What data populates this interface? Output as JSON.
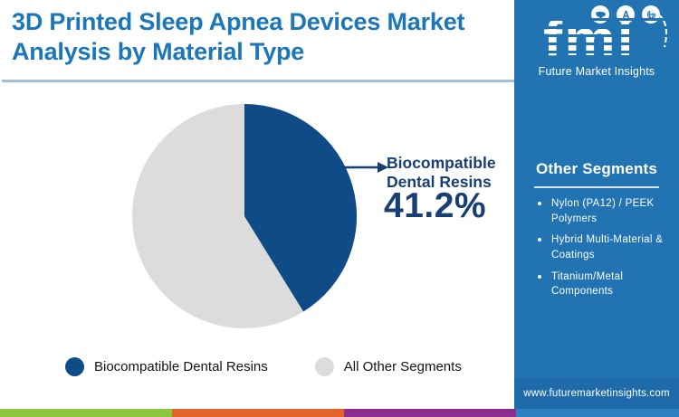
{
  "colors": {
    "title_blue": "#1B76BA",
    "sidebar_blue": "#2273B2",
    "navy": "#173F74",
    "pie_navy": "#0F4B87",
    "pie_gray": "#DCDCDC",
    "divider": "#9FC2DA",
    "strip_green": "#8CC63F",
    "strip_orange": "#E4632A",
    "strip_purple": "#8E2C90",
    "strip_blue": "#2F80C3",
    "website_band": "#1F6BA9",
    "legend_text": "#141414"
  },
  "header": {
    "title": "3D Printed Sleep Apnea Devices Market Analysis by Material Type"
  },
  "brand": {
    "letters": "fmi",
    "name": "Future Market Insights",
    "icons": [
      "us-map",
      "drafting-compass",
      "globe"
    ],
    "website": "www.futuremarketinsights.com"
  },
  "chart_data": {
    "type": "pie",
    "title": "3D Printed Sleep Apnea Devices Market Analysis by Material Type",
    "slices": [
      {
        "label": "Biocompatible Dental Resins",
        "value": 41.2,
        "color": "#0F4B87"
      },
      {
        "label": "All Other Segments",
        "value": 58.8,
        "color": "#DCDCDC"
      }
    ],
    "start_angle_deg": 0,
    "direction": "clockwise",
    "callout": {
      "label": "Biocompatible Dental Resins",
      "value": "41.2%"
    },
    "legend_position": "bottom"
  },
  "sidebar": {
    "heading": "Other Segments",
    "items": [
      "Nylon (PA12) / PEEK Polymers",
      "Hybrid Multi-Material & Coatings",
      "Titanium/Metal Components"
    ]
  }
}
